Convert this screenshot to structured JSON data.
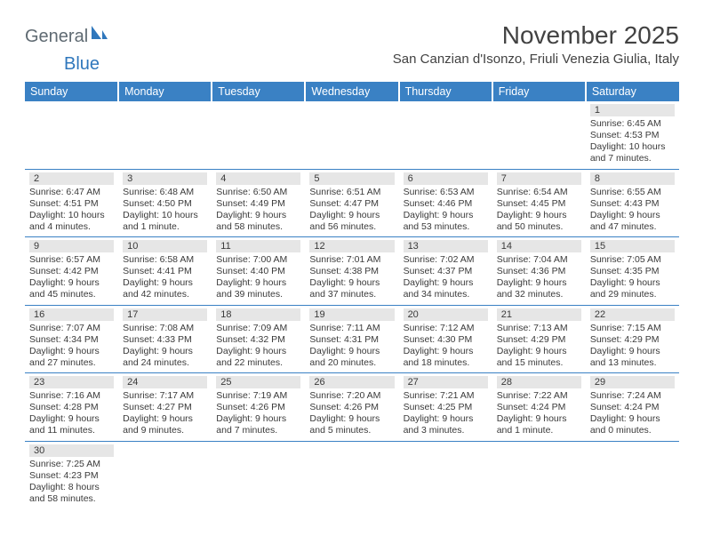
{
  "logo": {
    "textA": "General",
    "textB": "Blue"
  },
  "title": "November 2025",
  "location": "San Canzian d'Isonzo, Friuli Venezia Giulia, Italy",
  "colors": {
    "headerBg": "#3a81c4",
    "headerText": "#ffffff",
    "dayBarBg": "#e6e6e6",
    "text": "#3a3a3a",
    "rowDivider": "#3a81c4",
    "logoGeneral": "#5f6a72",
    "logoBlue": "#2f77bc"
  },
  "dayHeaders": [
    "Sunday",
    "Monday",
    "Tuesday",
    "Wednesday",
    "Thursday",
    "Friday",
    "Saturday"
  ],
  "weeks": [
    [
      null,
      null,
      null,
      null,
      null,
      null,
      {
        "n": "1",
        "sunrise": "Sunrise: 6:45 AM",
        "sunset": "Sunset: 4:53 PM",
        "daylight": "Daylight: 10 hours and 7 minutes."
      }
    ],
    [
      {
        "n": "2",
        "sunrise": "Sunrise: 6:47 AM",
        "sunset": "Sunset: 4:51 PM",
        "daylight": "Daylight: 10 hours and 4 minutes."
      },
      {
        "n": "3",
        "sunrise": "Sunrise: 6:48 AM",
        "sunset": "Sunset: 4:50 PM",
        "daylight": "Daylight: 10 hours and 1 minute."
      },
      {
        "n": "4",
        "sunrise": "Sunrise: 6:50 AM",
        "sunset": "Sunset: 4:49 PM",
        "daylight": "Daylight: 9 hours and 58 minutes."
      },
      {
        "n": "5",
        "sunrise": "Sunrise: 6:51 AM",
        "sunset": "Sunset: 4:47 PM",
        "daylight": "Daylight: 9 hours and 56 minutes."
      },
      {
        "n": "6",
        "sunrise": "Sunrise: 6:53 AM",
        "sunset": "Sunset: 4:46 PM",
        "daylight": "Daylight: 9 hours and 53 minutes."
      },
      {
        "n": "7",
        "sunrise": "Sunrise: 6:54 AM",
        "sunset": "Sunset: 4:45 PM",
        "daylight": "Daylight: 9 hours and 50 minutes."
      },
      {
        "n": "8",
        "sunrise": "Sunrise: 6:55 AM",
        "sunset": "Sunset: 4:43 PM",
        "daylight": "Daylight: 9 hours and 47 minutes."
      }
    ],
    [
      {
        "n": "9",
        "sunrise": "Sunrise: 6:57 AM",
        "sunset": "Sunset: 4:42 PM",
        "daylight": "Daylight: 9 hours and 45 minutes."
      },
      {
        "n": "10",
        "sunrise": "Sunrise: 6:58 AM",
        "sunset": "Sunset: 4:41 PM",
        "daylight": "Daylight: 9 hours and 42 minutes."
      },
      {
        "n": "11",
        "sunrise": "Sunrise: 7:00 AM",
        "sunset": "Sunset: 4:40 PM",
        "daylight": "Daylight: 9 hours and 39 minutes."
      },
      {
        "n": "12",
        "sunrise": "Sunrise: 7:01 AM",
        "sunset": "Sunset: 4:38 PM",
        "daylight": "Daylight: 9 hours and 37 minutes."
      },
      {
        "n": "13",
        "sunrise": "Sunrise: 7:02 AM",
        "sunset": "Sunset: 4:37 PM",
        "daylight": "Daylight: 9 hours and 34 minutes."
      },
      {
        "n": "14",
        "sunrise": "Sunrise: 7:04 AM",
        "sunset": "Sunset: 4:36 PM",
        "daylight": "Daylight: 9 hours and 32 minutes."
      },
      {
        "n": "15",
        "sunrise": "Sunrise: 7:05 AM",
        "sunset": "Sunset: 4:35 PM",
        "daylight": "Daylight: 9 hours and 29 minutes."
      }
    ],
    [
      {
        "n": "16",
        "sunrise": "Sunrise: 7:07 AM",
        "sunset": "Sunset: 4:34 PM",
        "daylight": "Daylight: 9 hours and 27 minutes."
      },
      {
        "n": "17",
        "sunrise": "Sunrise: 7:08 AM",
        "sunset": "Sunset: 4:33 PM",
        "daylight": "Daylight: 9 hours and 24 minutes."
      },
      {
        "n": "18",
        "sunrise": "Sunrise: 7:09 AM",
        "sunset": "Sunset: 4:32 PM",
        "daylight": "Daylight: 9 hours and 22 minutes."
      },
      {
        "n": "19",
        "sunrise": "Sunrise: 7:11 AM",
        "sunset": "Sunset: 4:31 PM",
        "daylight": "Daylight: 9 hours and 20 minutes."
      },
      {
        "n": "20",
        "sunrise": "Sunrise: 7:12 AM",
        "sunset": "Sunset: 4:30 PM",
        "daylight": "Daylight: 9 hours and 18 minutes."
      },
      {
        "n": "21",
        "sunrise": "Sunrise: 7:13 AM",
        "sunset": "Sunset: 4:29 PM",
        "daylight": "Daylight: 9 hours and 15 minutes."
      },
      {
        "n": "22",
        "sunrise": "Sunrise: 7:15 AM",
        "sunset": "Sunset: 4:29 PM",
        "daylight": "Daylight: 9 hours and 13 minutes."
      }
    ],
    [
      {
        "n": "23",
        "sunrise": "Sunrise: 7:16 AM",
        "sunset": "Sunset: 4:28 PM",
        "daylight": "Daylight: 9 hours and 11 minutes."
      },
      {
        "n": "24",
        "sunrise": "Sunrise: 7:17 AM",
        "sunset": "Sunset: 4:27 PM",
        "daylight": "Daylight: 9 hours and 9 minutes."
      },
      {
        "n": "25",
        "sunrise": "Sunrise: 7:19 AM",
        "sunset": "Sunset: 4:26 PM",
        "daylight": "Daylight: 9 hours and 7 minutes."
      },
      {
        "n": "26",
        "sunrise": "Sunrise: 7:20 AM",
        "sunset": "Sunset: 4:26 PM",
        "daylight": "Daylight: 9 hours and 5 minutes."
      },
      {
        "n": "27",
        "sunrise": "Sunrise: 7:21 AM",
        "sunset": "Sunset: 4:25 PM",
        "daylight": "Daylight: 9 hours and 3 minutes."
      },
      {
        "n": "28",
        "sunrise": "Sunrise: 7:22 AM",
        "sunset": "Sunset: 4:24 PM",
        "daylight": "Daylight: 9 hours and 1 minute."
      },
      {
        "n": "29",
        "sunrise": "Sunrise: 7:24 AM",
        "sunset": "Sunset: 4:24 PM",
        "daylight": "Daylight: 9 hours and 0 minutes."
      }
    ],
    [
      {
        "n": "30",
        "sunrise": "Sunrise: 7:25 AM",
        "sunset": "Sunset: 4:23 PM",
        "daylight": "Daylight: 8 hours and 58 minutes."
      },
      null,
      null,
      null,
      null,
      null,
      null
    ]
  ]
}
